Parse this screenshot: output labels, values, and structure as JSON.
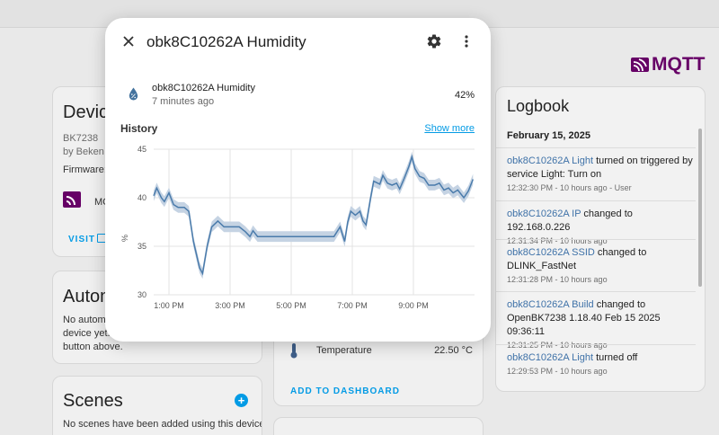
{
  "background": {
    "mqtt_logo_text": "MQTT",
    "device_card": {
      "title": "Device",
      "chip": "BK7238",
      "by": "by Beken C",
      "firmware_label": "Firmware:",
      "mqtt_label": "MC",
      "visit_label": "VISIT"
    },
    "automation_card": {
      "title": "Autom",
      "line1": "No autom",
      "line2": "device yet.",
      "line3": "button above."
    },
    "scenes_card": {
      "title": "Scenes",
      "body": "No scenes have been added using this device"
    },
    "sensors_card": {
      "temperature_label": "Temperature",
      "temperature_value": "22.50 °C",
      "add_to_dashboard": "ADD TO DASHBOARD"
    },
    "logbook": {
      "title": "Logbook",
      "date": "February 15, 2025",
      "entries": [
        {
          "entity": "obk8C10262A Light",
          "text": " turned on triggered by service Light: Turn on",
          "time": "12:32:30 PM - 10 hours ago - User"
        },
        {
          "entity": "obk8C10262A IP",
          "text": " changed to 192.168.0.226",
          "time": "12:31:34 PM - 10 hours ago"
        },
        {
          "entity": "obk8C10262A SSID",
          "text": " changed to DLINK_FastNet",
          "time": "12:31:28 PM - 10 hours ago"
        },
        {
          "entity": "obk8C10262A Build",
          "text": " changed to OpenBK7238 1.18.40 Feb 15 2025 09:36:11",
          "time": "12:31:25 PM - 10 hours ago"
        },
        {
          "entity": "obk8C10262A Light",
          "text": " turned off",
          "time": "12:29:53 PM - 10 hours ago"
        }
      ]
    }
  },
  "dialog": {
    "title": "obk8C10262A Humidity",
    "close_icon": "close-icon",
    "settings_icon": "gear-icon",
    "menu_icon": "dots-vertical-icon",
    "entity": {
      "icon": "water-percent-icon",
      "name": "obk8C10262A Humidity",
      "last_changed": "7 minutes ago",
      "state": "42%"
    },
    "history_label": "History",
    "show_more": "Show more"
  },
  "colors": {
    "line": "#4a7bab",
    "band": "#c5d3e3",
    "accent": "#039be5",
    "mqtt": "#660066"
  },
  "chart_data": {
    "type": "line",
    "title": "",
    "xlabel": "",
    "ylabel": "%",
    "ylim": [
      30,
      45
    ],
    "yticks": [
      30,
      35,
      40,
      45
    ],
    "xticks": [
      "1:00 PM",
      "3:00 PM",
      "5:00 PM",
      "7:00 PM",
      "9:00 PM"
    ],
    "xrange_hours": [
      12.5,
      23.0
    ],
    "xtick_hours": [
      13,
      15,
      17,
      19,
      21
    ],
    "series": [
      {
        "values": [
          [
            12.5,
            40.2
          ],
          [
            12.6,
            41.0
          ],
          [
            12.75,
            40.0
          ],
          [
            12.85,
            39.6
          ],
          [
            13.0,
            40.5
          ],
          [
            13.15,
            39.3
          ],
          [
            13.3,
            39.0
          ],
          [
            13.5,
            39.0
          ],
          [
            13.65,
            38.6
          ],
          [
            13.8,
            35.5
          ],
          [
            14.0,
            32.8
          ],
          [
            14.1,
            32.2
          ],
          [
            14.25,
            35.0
          ],
          [
            14.4,
            37.0
          ],
          [
            14.6,
            37.6
          ],
          [
            14.8,
            37.0
          ],
          [
            15.3,
            37.0
          ],
          [
            15.5,
            36.5
          ],
          [
            15.65,
            36.0
          ],
          [
            15.75,
            36.6
          ],
          [
            15.9,
            36.0
          ],
          [
            16.5,
            36.0
          ],
          [
            17.5,
            36.0
          ],
          [
            18.4,
            36.0
          ],
          [
            18.6,
            37.0
          ],
          [
            18.75,
            35.5
          ],
          [
            18.85,
            37.5
          ],
          [
            18.95,
            38.6
          ],
          [
            19.1,
            38.2
          ],
          [
            19.25,
            38.6
          ],
          [
            19.35,
            37.6
          ],
          [
            19.45,
            37.2
          ],
          [
            19.6,
            40.0
          ],
          [
            19.7,
            41.7
          ],
          [
            19.9,
            41.4
          ],
          [
            20.0,
            42.3
          ],
          [
            20.15,
            41.5
          ],
          [
            20.3,
            41.3
          ],
          [
            20.45,
            41.5
          ],
          [
            20.55,
            40.9
          ],
          [
            20.7,
            42.0
          ],
          [
            20.85,
            43.2
          ],
          [
            20.95,
            44.2
          ],
          [
            21.05,
            43.0
          ],
          [
            21.2,
            42.2
          ],
          [
            21.35,
            42.0
          ],
          [
            21.5,
            41.3
          ],
          [
            21.7,
            41.3
          ],
          [
            21.85,
            41.5
          ],
          [
            22.0,
            40.8
          ],
          [
            22.15,
            41.0
          ],
          [
            22.3,
            40.5
          ],
          [
            22.45,
            40.8
          ],
          [
            22.65,
            40.0
          ],
          [
            22.8,
            40.7
          ],
          [
            22.95,
            41.9
          ]
        ]
      }
    ]
  }
}
